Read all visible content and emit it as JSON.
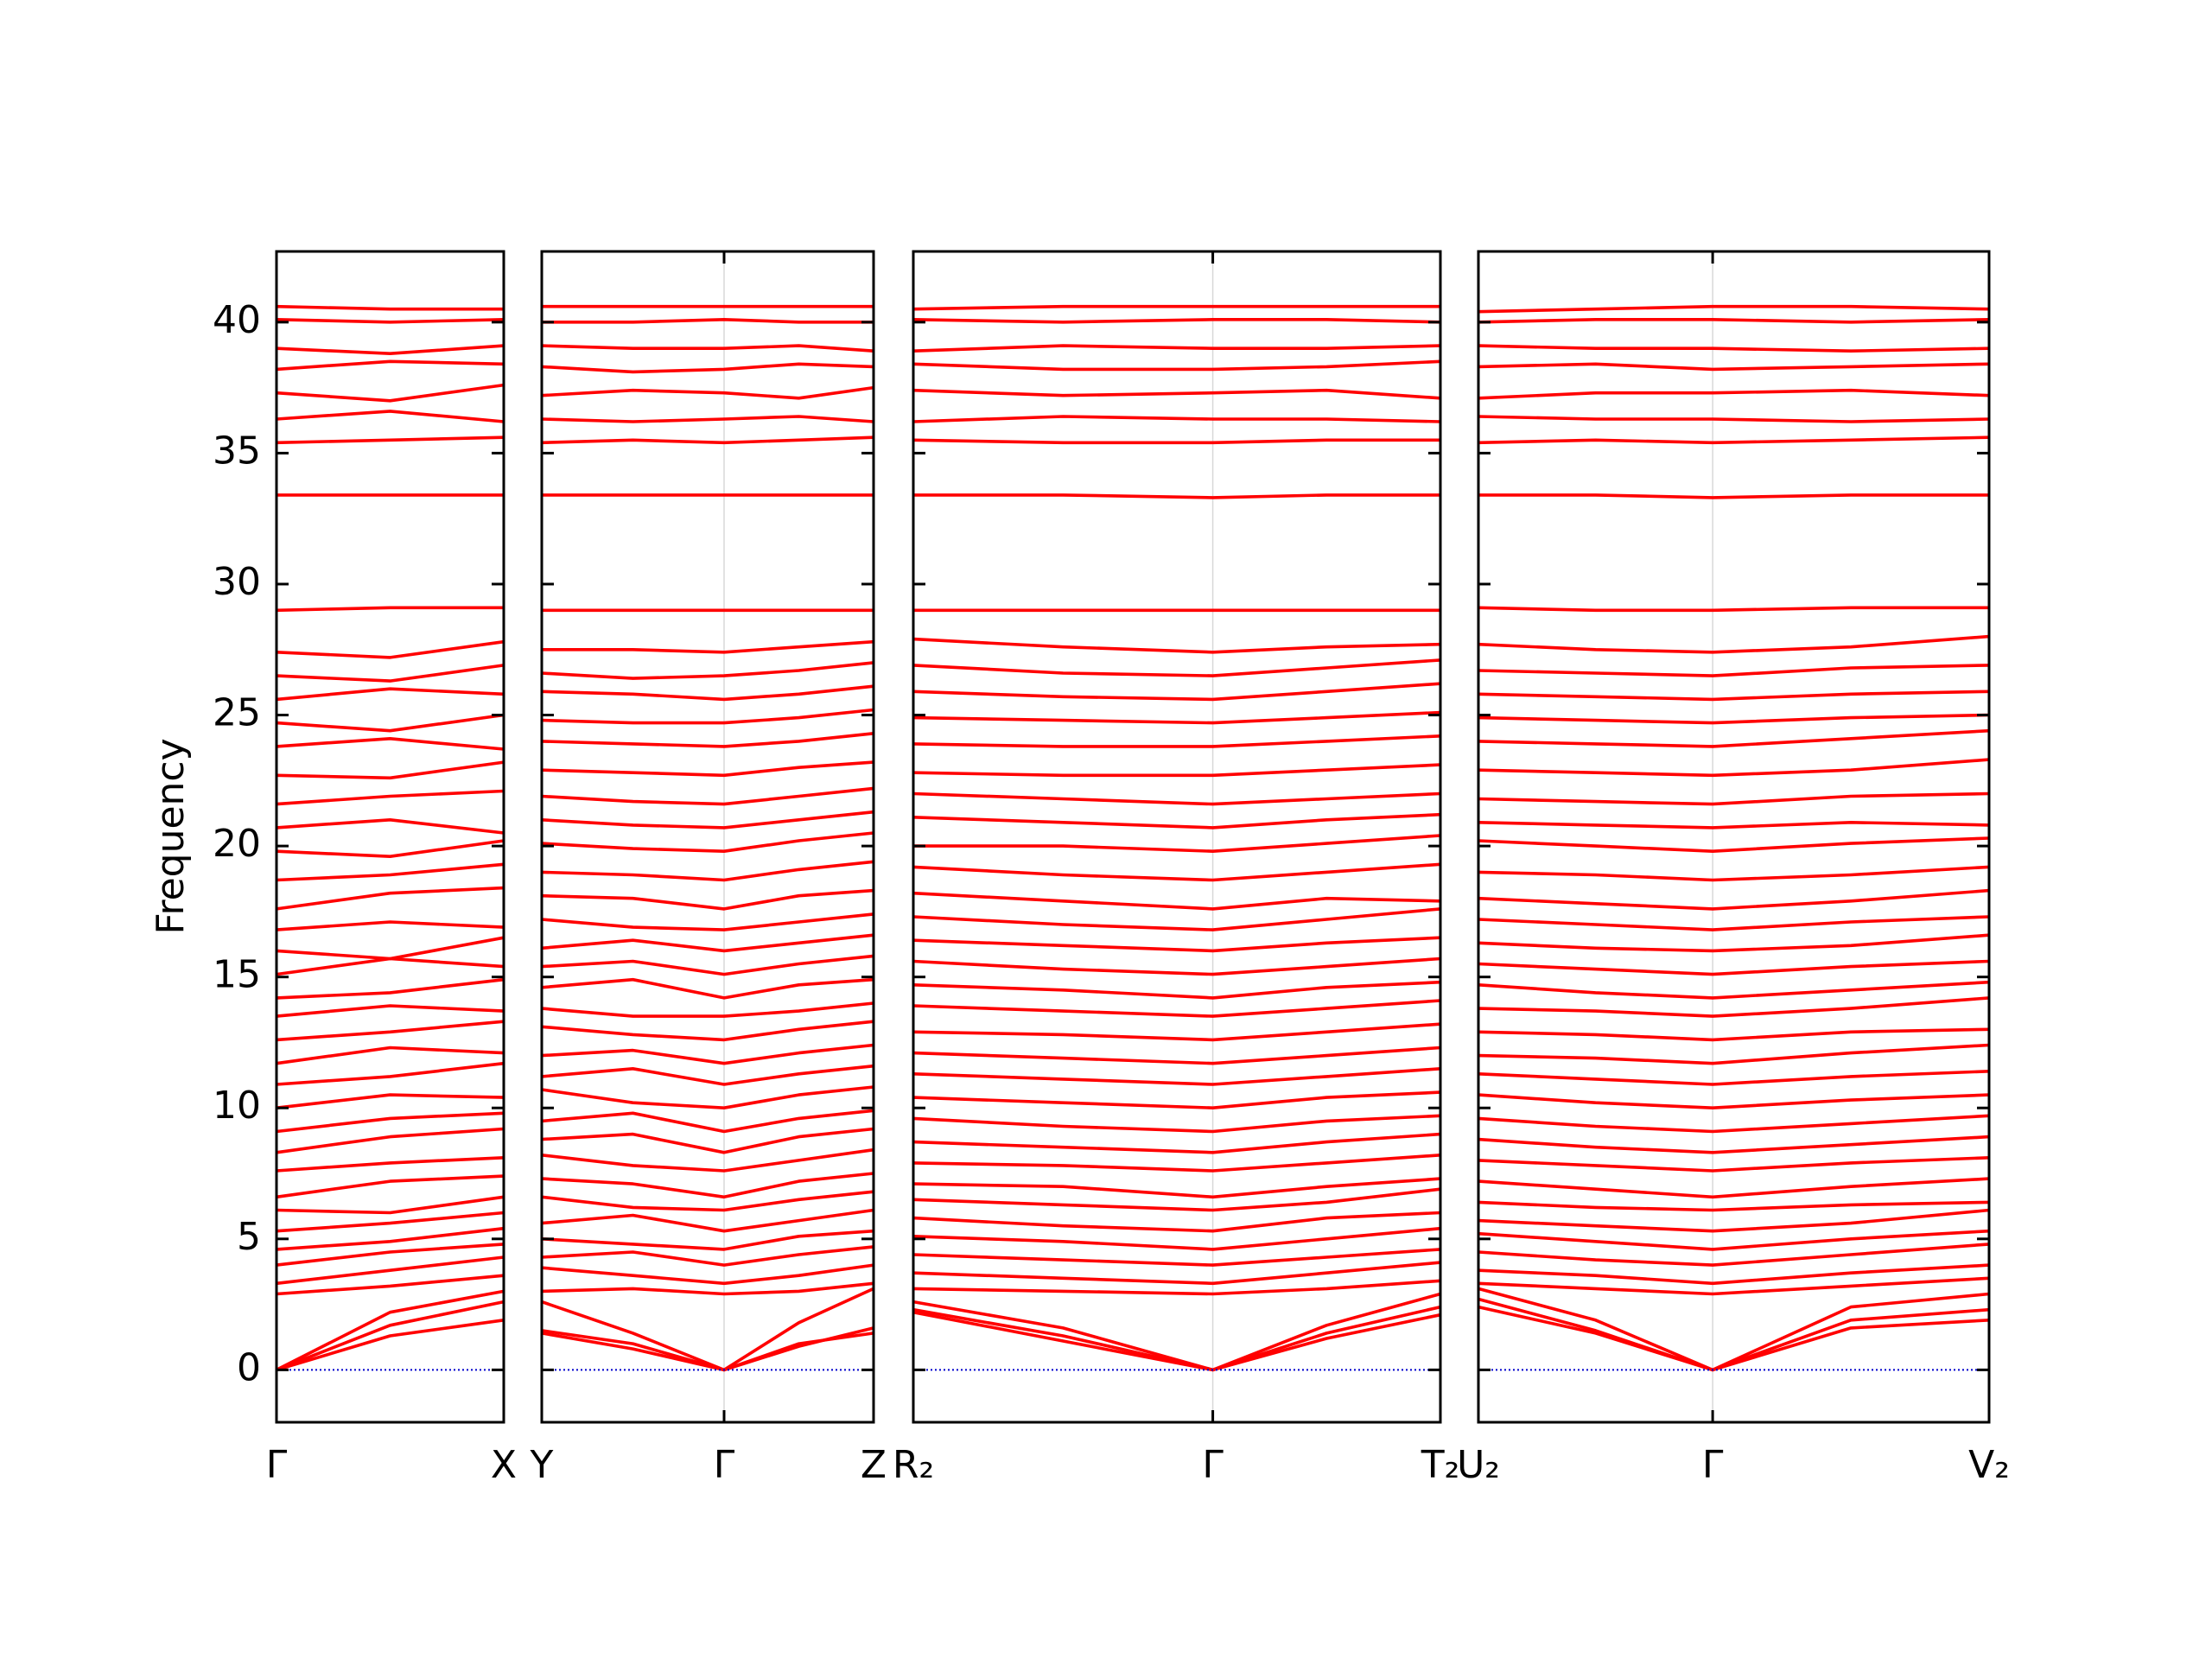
{
  "chart_data": {
    "type": "line",
    "ylabel": "Frequency",
    "ylim": [
      -2,
      42.7
    ],
    "yticks": [
      0,
      5,
      10,
      15,
      20,
      25,
      30,
      35,
      40
    ],
    "line_color": "#ff0000",
    "hline": 0,
    "hline_color": "#0000cc",
    "panels": [
      {
        "x": [
          0,
          0.5,
          1
        ],
        "xticks": [
          {
            "value": 0,
            "label": "Γ"
          },
          {
            "value": 1,
            "label": "X"
          }
        ],
        "series": [
          [
            0,
            1.3,
            1.9
          ],
          [
            0,
            1.7,
            2.6
          ],
          [
            0,
            2.2,
            3.0
          ],
          [
            2.9,
            3.2,
            3.6
          ],
          [
            3.3,
            3.8,
            4.3
          ],
          [
            4.0,
            4.5,
            4.8
          ],
          [
            4.6,
            4.9,
            5.4
          ],
          [
            5.3,
            5.6,
            6.0
          ],
          [
            6.1,
            6.0,
            6.6
          ],
          [
            6.6,
            7.2,
            7.4
          ],
          [
            7.6,
            7.9,
            8.1
          ],
          [
            8.3,
            8.9,
            9.2
          ],
          [
            9.1,
            9.6,
            9.8
          ],
          [
            10.0,
            10.5,
            10.4
          ],
          [
            10.9,
            11.2,
            11.7
          ],
          [
            11.7,
            12.3,
            12.1
          ],
          [
            12.6,
            12.9,
            13.3
          ],
          [
            13.5,
            13.9,
            13.7
          ],
          [
            14.2,
            14.4,
            14.9
          ],
          [
            15.1,
            15.7,
            15.4
          ],
          [
            16.0,
            15.7,
            16.5
          ],
          [
            16.8,
            17.1,
            16.9
          ],
          [
            17.6,
            18.2,
            18.4
          ],
          [
            18.7,
            18.9,
            19.3
          ],
          [
            19.8,
            19.6,
            20.2
          ],
          [
            20.7,
            21.0,
            20.5
          ],
          [
            21.6,
            21.9,
            22.1
          ],
          [
            22.7,
            22.6,
            23.2
          ],
          [
            23.8,
            24.1,
            23.7
          ],
          [
            24.7,
            24.4,
            25.0
          ],
          [
            25.6,
            26.0,
            25.8
          ],
          [
            26.5,
            26.3,
            26.9
          ],
          [
            27.4,
            27.2,
            27.8
          ],
          [
            29.0,
            29.1,
            29.1
          ],
          [
            33.4,
            33.4,
            33.4
          ],
          [
            35.4,
            35.5,
            35.6
          ],
          [
            36.3,
            36.6,
            36.2
          ],
          [
            37.3,
            37.0,
            37.6
          ],
          [
            38.2,
            38.5,
            38.4
          ],
          [
            39.0,
            38.8,
            39.1
          ],
          [
            40.1,
            40.0,
            40.1
          ],
          [
            40.6,
            40.5,
            40.5
          ]
        ]
      },
      {
        "x": [
          0,
          0.5,
          1,
          1.41,
          1.82
        ],
        "xticks": [
          {
            "value": 0,
            "label": "Y"
          },
          {
            "value": 1,
            "label": "Γ"
          },
          {
            "value": 1.82,
            "label": "Z"
          }
        ],
        "series": [
          [
            1.5,
            1.0,
            0,
            1.0,
            1.4
          ],
          [
            1.4,
            0.8,
            0,
            0.9,
            1.6
          ],
          [
            2.6,
            1.4,
            0,
            1.8,
            3.1
          ],
          [
            3.0,
            3.1,
            2.9,
            3.0,
            3.3
          ],
          [
            3.9,
            3.6,
            3.3,
            3.6,
            4.0
          ],
          [
            4.3,
            4.5,
            4.0,
            4.4,
            4.7
          ],
          [
            5.0,
            4.8,
            4.6,
            5.1,
            5.3
          ],
          [
            5.6,
            5.9,
            5.3,
            5.7,
            6.1
          ],
          [
            6.6,
            6.2,
            6.1,
            6.5,
            6.8
          ],
          [
            7.3,
            7.1,
            6.6,
            7.2,
            7.5
          ],
          [
            8.2,
            7.8,
            7.6,
            8.0,
            8.4
          ],
          [
            8.8,
            9.0,
            8.3,
            8.9,
            9.2
          ],
          [
            9.5,
            9.8,
            9.1,
            9.6,
            9.9
          ],
          [
            10.7,
            10.2,
            10.0,
            10.5,
            10.8
          ],
          [
            11.2,
            11.5,
            10.9,
            11.3,
            11.6
          ],
          [
            12.0,
            12.2,
            11.7,
            12.1,
            12.4
          ],
          [
            13.1,
            12.8,
            12.6,
            13.0,
            13.3
          ],
          [
            13.8,
            13.5,
            13.5,
            13.7,
            14.0
          ],
          [
            14.6,
            14.9,
            14.2,
            14.7,
            14.9
          ],
          [
            15.4,
            15.6,
            15.1,
            15.5,
            15.8
          ],
          [
            16.1,
            16.4,
            16.0,
            16.3,
            16.6
          ],
          [
            17.2,
            16.9,
            16.8,
            17.1,
            17.4
          ],
          [
            18.1,
            18.0,
            17.6,
            18.1,
            18.3
          ],
          [
            19.0,
            18.9,
            18.7,
            19.1,
            19.4
          ],
          [
            20.1,
            19.9,
            19.8,
            20.2,
            20.5
          ],
          [
            21.0,
            20.8,
            20.7,
            21.0,
            21.3
          ],
          [
            21.9,
            21.7,
            21.6,
            21.9,
            22.2
          ],
          [
            22.9,
            22.8,
            22.7,
            23.0,
            23.2
          ],
          [
            24.0,
            23.9,
            23.8,
            24.0,
            24.3
          ],
          [
            24.8,
            24.7,
            24.7,
            24.9,
            25.2
          ],
          [
            25.9,
            25.8,
            25.6,
            25.8,
            26.1
          ],
          [
            26.6,
            26.4,
            26.5,
            26.7,
            27.0
          ],
          [
            27.5,
            27.5,
            27.4,
            27.6,
            27.8
          ],
          [
            29.0,
            29.0,
            29.0,
            29.0,
            29.0
          ],
          [
            33.4,
            33.4,
            33.4,
            33.4,
            33.4
          ],
          [
            35.4,
            35.5,
            35.4,
            35.5,
            35.6
          ],
          [
            36.3,
            36.2,
            36.3,
            36.4,
            36.2
          ],
          [
            37.2,
            37.4,
            37.3,
            37.1,
            37.5
          ],
          [
            38.3,
            38.1,
            38.2,
            38.4,
            38.3
          ],
          [
            39.1,
            39.0,
            39.0,
            39.1,
            38.9
          ],
          [
            40.0,
            40.0,
            40.1,
            40.0,
            40.0
          ],
          [
            40.6,
            40.6,
            40.6,
            40.6,
            40.6
          ]
        ]
      },
      {
        "x": [
          0,
          0.5,
          1,
          1.38,
          1.76
        ],
        "xticks": [
          {
            "value": 0,
            "label": "R₂"
          },
          {
            "value": 1,
            "label": "Γ"
          },
          {
            "value": 1.76,
            "label": "T₂"
          }
        ],
        "series": [
          [
            2.3,
            1.3,
            0,
            1.2,
            2.1
          ],
          [
            2.2,
            1.1,
            0,
            1.4,
            2.4
          ],
          [
            2.6,
            1.6,
            0,
            1.7,
            2.9
          ],
          [
            3.1,
            3.0,
            2.9,
            3.1,
            3.4
          ],
          [
            3.7,
            3.5,
            3.3,
            3.7,
            4.1
          ],
          [
            4.4,
            4.2,
            4.0,
            4.3,
            4.6
          ],
          [
            5.1,
            4.9,
            4.6,
            5.0,
            5.4
          ],
          [
            5.8,
            5.5,
            5.3,
            5.8,
            6.0
          ],
          [
            6.5,
            6.3,
            6.1,
            6.4,
            6.9
          ],
          [
            7.1,
            7.0,
            6.6,
            7.0,
            7.3
          ],
          [
            7.9,
            7.8,
            7.6,
            7.9,
            8.2
          ],
          [
            8.7,
            8.5,
            8.3,
            8.7,
            9.0
          ],
          [
            9.6,
            9.3,
            9.1,
            9.5,
            9.7
          ],
          [
            10.4,
            10.2,
            10.0,
            10.4,
            10.6
          ],
          [
            11.3,
            11.1,
            10.9,
            11.2,
            11.5
          ],
          [
            12.1,
            11.9,
            11.7,
            12.0,
            12.3
          ],
          [
            12.9,
            12.8,
            12.6,
            12.9,
            13.2
          ],
          [
            13.9,
            13.7,
            13.5,
            13.8,
            14.1
          ],
          [
            14.7,
            14.5,
            14.2,
            14.6,
            14.8
          ],
          [
            15.6,
            15.3,
            15.1,
            15.4,
            15.7
          ],
          [
            16.4,
            16.2,
            16.0,
            16.3,
            16.5
          ],
          [
            17.3,
            17.0,
            16.8,
            17.2,
            17.6
          ],
          [
            18.2,
            17.9,
            17.6,
            18.0,
            17.9
          ],
          [
            19.2,
            18.9,
            18.7,
            19.0,
            19.3
          ],
          [
            20.0,
            20.0,
            19.8,
            20.1,
            20.4
          ],
          [
            21.1,
            20.9,
            20.7,
            21.0,
            21.2
          ],
          [
            22.0,
            21.8,
            21.6,
            21.8,
            22.0
          ],
          [
            22.8,
            22.7,
            22.7,
            22.9,
            23.1
          ],
          [
            23.9,
            23.8,
            23.8,
            24.0,
            24.2
          ],
          [
            24.9,
            24.8,
            24.7,
            24.9,
            25.1
          ],
          [
            25.9,
            25.7,
            25.6,
            25.9,
            26.2
          ],
          [
            26.9,
            26.6,
            26.5,
            26.8,
            27.1
          ],
          [
            27.9,
            27.6,
            27.4,
            27.6,
            27.7
          ],
          [
            29.0,
            29.0,
            29.0,
            29.0,
            29.0
          ],
          [
            33.4,
            33.4,
            33.3,
            33.4,
            33.4
          ],
          [
            35.5,
            35.4,
            35.4,
            35.5,
            35.5
          ],
          [
            36.2,
            36.4,
            36.3,
            36.3,
            36.2
          ],
          [
            37.4,
            37.2,
            37.3,
            37.4,
            37.1
          ],
          [
            38.4,
            38.2,
            38.2,
            38.3,
            38.5
          ],
          [
            38.9,
            39.1,
            39.0,
            39.0,
            39.1
          ],
          [
            40.1,
            40.0,
            40.1,
            40.1,
            40.0
          ],
          [
            40.5,
            40.6,
            40.6,
            40.6,
            40.6
          ]
        ]
      },
      {
        "x": [
          0,
          0.5,
          1,
          1.59,
          2.18
        ],
        "xticks": [
          {
            "value": 0,
            "label": "U₂"
          },
          {
            "value": 1,
            "label": "Γ"
          },
          {
            "value": 2.18,
            "label": "V₂"
          }
        ],
        "series": [
          [
            2.4,
            1.4,
            0,
            1.6,
            1.9
          ],
          [
            2.7,
            1.5,
            0,
            1.9,
            2.3
          ],
          [
            3.1,
            1.9,
            0,
            2.4,
            2.9
          ],
          [
            3.3,
            3.1,
            2.9,
            3.2,
            3.5
          ],
          [
            3.8,
            3.6,
            3.3,
            3.7,
            4.0
          ],
          [
            4.5,
            4.2,
            4.0,
            4.4,
            4.8
          ],
          [
            5.2,
            4.9,
            4.6,
            5.0,
            5.3
          ],
          [
            5.7,
            5.5,
            5.3,
            5.6,
            6.1
          ],
          [
            6.4,
            6.2,
            6.1,
            6.3,
            6.4
          ],
          [
            7.2,
            6.9,
            6.6,
            7.0,
            7.3
          ],
          [
            8.0,
            7.8,
            7.6,
            7.9,
            8.1
          ],
          [
            8.8,
            8.5,
            8.3,
            8.6,
            8.9
          ],
          [
            9.6,
            9.3,
            9.1,
            9.4,
            9.7
          ],
          [
            10.5,
            10.2,
            10.0,
            10.3,
            10.5
          ],
          [
            11.3,
            11.1,
            10.9,
            11.2,
            11.4
          ],
          [
            12.0,
            11.9,
            11.7,
            12.1,
            12.4
          ],
          [
            12.9,
            12.8,
            12.6,
            12.9,
            13.0
          ],
          [
            13.8,
            13.7,
            13.5,
            13.8,
            14.2
          ],
          [
            14.7,
            14.4,
            14.2,
            14.5,
            14.8
          ],
          [
            15.5,
            15.3,
            15.1,
            15.4,
            15.6
          ],
          [
            16.3,
            16.1,
            16.0,
            16.2,
            16.6
          ],
          [
            17.2,
            17.0,
            16.8,
            17.1,
            17.3
          ],
          [
            18.0,
            17.8,
            17.6,
            17.9,
            18.3
          ],
          [
            19.0,
            18.9,
            18.7,
            18.9,
            19.2
          ],
          [
            20.2,
            20.0,
            19.8,
            20.1,
            20.3
          ],
          [
            20.9,
            20.8,
            20.7,
            20.9,
            20.8
          ],
          [
            21.8,
            21.7,
            21.6,
            21.9,
            22.0
          ],
          [
            22.9,
            22.8,
            22.7,
            22.9,
            23.3
          ],
          [
            24.0,
            23.9,
            23.8,
            24.1,
            24.4
          ],
          [
            24.9,
            24.8,
            24.7,
            24.9,
            25.0
          ],
          [
            25.8,
            25.7,
            25.6,
            25.8,
            25.9
          ],
          [
            26.7,
            26.6,
            26.5,
            26.8,
            26.9
          ],
          [
            27.7,
            27.5,
            27.4,
            27.6,
            28.0
          ],
          [
            29.1,
            29.0,
            29.0,
            29.1,
            29.1
          ],
          [
            33.4,
            33.4,
            33.3,
            33.4,
            33.4
          ],
          [
            35.4,
            35.5,
            35.4,
            35.5,
            35.6
          ],
          [
            36.4,
            36.3,
            36.3,
            36.2,
            36.3
          ],
          [
            37.1,
            37.3,
            37.3,
            37.4,
            37.2
          ],
          [
            38.3,
            38.4,
            38.2,
            38.3,
            38.4
          ],
          [
            39.1,
            39.0,
            39.0,
            38.9,
            39.0
          ],
          [
            40.0,
            40.1,
            40.1,
            40.0,
            40.1
          ],
          [
            40.4,
            40.5,
            40.6,
            40.6,
            40.5
          ]
        ]
      }
    ]
  }
}
